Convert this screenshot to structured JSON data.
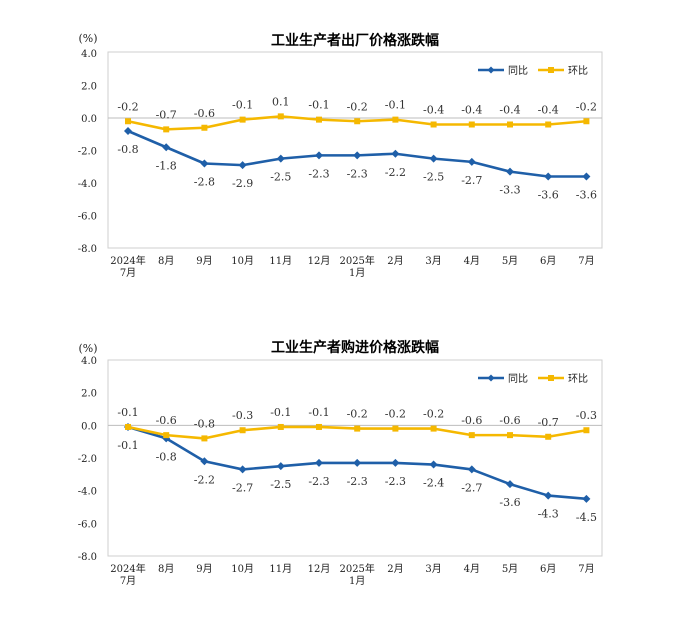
{
  "chart_data": [
    {
      "type": "line",
      "title": "工业生产者出厂价格涨跌幅",
      "unit": "(%)",
      "categories": [
        [
          "2024年",
          "7月"
        ],
        [
          "8月"
        ],
        [
          "9月"
        ],
        [
          "10月"
        ],
        [
          "11月"
        ],
        [
          "12月"
        ],
        [
          "2025年",
          "1月"
        ],
        [
          "2月"
        ],
        [
          "3月"
        ],
        [
          "4月"
        ],
        [
          "5月"
        ],
        [
          "6月"
        ],
        [
          "7月"
        ]
      ],
      "ylim": [
        -8.0,
        4.0
      ],
      "yticks": [
        "4.0",
        "2.0",
        "0.0",
        "-2.0",
        "-4.0",
        "-6.0",
        "-8.0"
      ],
      "series": [
        {
          "name": "同比",
          "color": "#1f5fa8",
          "marker": "diamond",
          "values": [
            -0.8,
            -1.8,
            -2.8,
            -2.9,
            -2.5,
            -2.3,
            -2.3,
            -2.2,
            -2.5,
            -2.7,
            -3.3,
            -3.6,
            -3.6
          ],
          "labels": [
            "-0.8",
            "-1.8",
            "-2.8",
            "-2.9",
            "-2.5",
            "-2.3",
            "-2.3",
            "-2.2",
            "-2.5",
            "-2.7",
            "-3.3",
            "-3.6",
            "-3.6"
          ]
        },
        {
          "name": "环比",
          "color": "#f5b800",
          "marker": "square",
          "values": [
            -0.2,
            -0.7,
            -0.6,
            -0.1,
            0.1,
            -0.1,
            -0.2,
            -0.1,
            -0.4,
            -0.4,
            -0.4,
            -0.4,
            -0.2
          ],
          "labels": [
            "-0.2",
            "-0.7",
            "-0.6",
            "-0.1",
            "0.1",
            "-0.1",
            "-0.2",
            "-0.1",
            "-0.4",
            "-0.4",
            "-0.4",
            "-0.4",
            "-0.2"
          ]
        }
      ],
      "legend": "top-right",
      "grid": false
    },
    {
      "type": "line",
      "title": "工业生产者购进价格涨跌幅",
      "unit": "(%)",
      "categories": [
        [
          "2024年",
          "7月"
        ],
        [
          "8月"
        ],
        [
          "9月"
        ],
        [
          "10月"
        ],
        [
          "11月"
        ],
        [
          "12月"
        ],
        [
          "2025年",
          "1月"
        ],
        [
          "2月"
        ],
        [
          "3月"
        ],
        [
          "4月"
        ],
        [
          "5月"
        ],
        [
          "6月"
        ],
        [
          "7月"
        ]
      ],
      "ylim": [
        -8.0,
        4.0
      ],
      "yticks": [
        "4.0",
        "2.0",
        "0.0",
        "-2.0",
        "-4.0",
        "-6.0",
        "-8.0"
      ],
      "series": [
        {
          "name": "同比",
          "color": "#1f5fa8",
          "marker": "diamond",
          "values": [
            -0.1,
            -0.8,
            -2.2,
            -2.7,
            -2.5,
            -2.3,
            -2.3,
            -2.3,
            -2.4,
            -2.7,
            -3.6,
            -4.3,
            -4.5
          ],
          "labels": [
            "-0.1",
            "-0.8",
            "-2.2",
            "-2.7",
            "-2.5",
            "-2.3",
            "-2.3",
            "-2.3",
            "-2.4",
            "-2.7",
            "-3.6",
            "-4.3",
            "-4.5"
          ]
        },
        {
          "name": "环比",
          "color": "#f5b800",
          "marker": "square",
          "values": [
            -0.1,
            -0.6,
            -0.8,
            -0.3,
            -0.1,
            -0.1,
            -0.2,
            -0.2,
            -0.2,
            -0.6,
            -0.6,
            -0.7,
            -0.3
          ],
          "labels": [
            "-0.1",
            "-0.6",
            "-0.8",
            "-0.3",
            "-0.1",
            "-0.1",
            "-0.2",
            "-0.2",
            "-0.2",
            "-0.6",
            "-0.6",
            "-0.7",
            "-0.3"
          ]
        }
      ],
      "legend": "top-right",
      "grid": false
    }
  ]
}
